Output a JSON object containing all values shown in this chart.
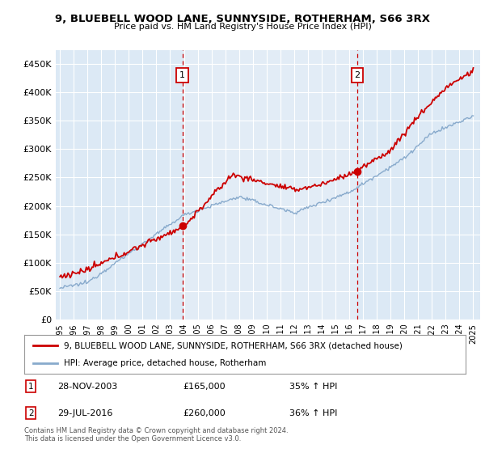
{
  "title": "9, BLUEBELL WOOD LANE, SUNNYSIDE, ROTHERHAM, S66 3RX",
  "subtitle": "Price paid vs. HM Land Registry's House Price Index (HPI)",
  "ylim": [
    0,
    475000
  ],
  "yticks": [
    0,
    50000,
    100000,
    150000,
    200000,
    250000,
    300000,
    350000,
    400000,
    450000
  ],
  "ytick_labels": [
    "£0",
    "£50K",
    "£100K",
    "£150K",
    "£200K",
    "£250K",
    "£300K",
    "£350K",
    "£400K",
    "£450K"
  ],
  "bg_color": "#dce9f5",
  "bg_color2": "#e8f0f8",
  "grid_color": "#ffffff",
  "sale1_date": "28-NOV-2003",
  "sale1_price": 165000,
  "sale1_pct": "35%",
  "sale1_year": 2003.9,
  "sale2_date": "29-JUL-2016",
  "sale2_price": 260000,
  "sale2_pct": "36%",
  "sale2_year": 2016.58,
  "red_color": "#cc0000",
  "blue_color": "#88aacc",
  "dot_color": "#cc0000",
  "footer": "Contains HM Land Registry data © Crown copyright and database right 2024.\nThis data is licensed under the Open Government Licence v3.0.",
  "legend_label1": "9, BLUEBELL WOOD LANE, SUNNYSIDE, ROTHERHAM, S66 3RX (detached house)",
  "legend_label2": "HPI: Average price, detached house, Rotherham"
}
